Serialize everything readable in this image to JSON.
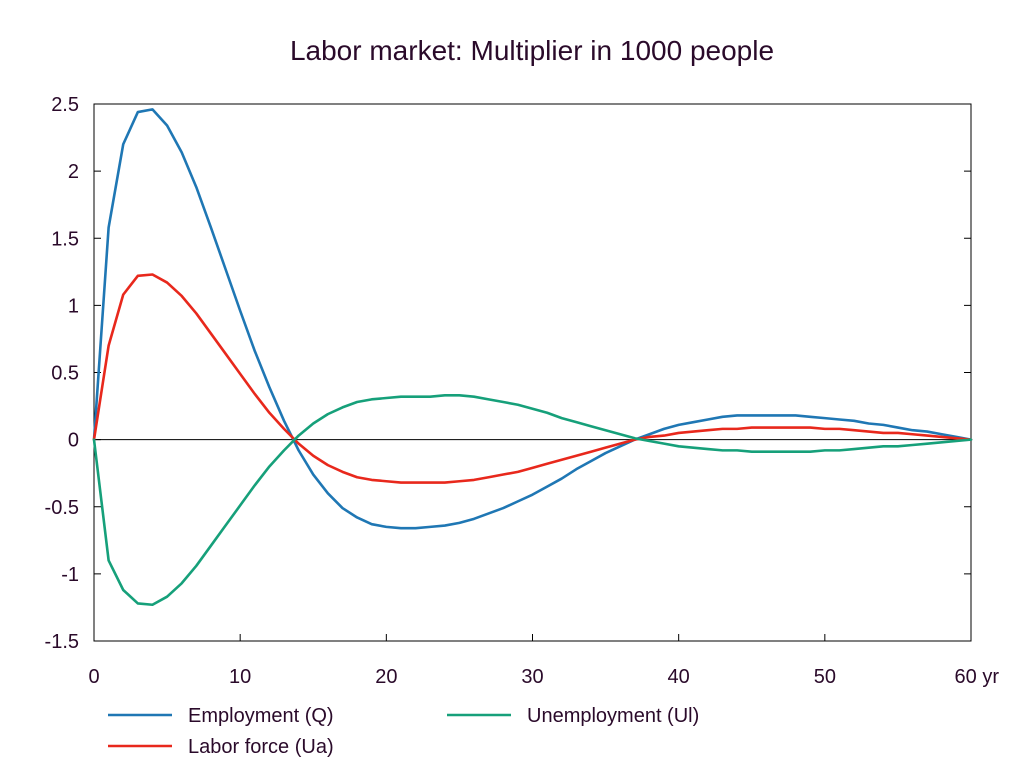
{
  "chart_data": {
    "type": "line",
    "title": "Labor market: Multiplier in 1000 people",
    "xlabel": "",
    "ylabel": "",
    "xlim": [
      0,
      60
    ],
    "ylim": [
      -1.5,
      2.5
    ],
    "x_ticks": [
      0,
      10,
      20,
      30,
      40,
      50,
      60
    ],
    "x_tick_labels": [
      "0",
      "10",
      "20",
      "30",
      "40",
      "50",
      "60 yr"
    ],
    "y_ticks": [
      2.5,
      2,
      1.5,
      1,
      0.5,
      0,
      -0.5,
      -1,
      -1.5
    ],
    "y_tick_labels": [
      "2.5",
      "2",
      "1.5",
      "1",
      "0.5",
      "0",
      "-0.5",
      "-1",
      "-1.5"
    ],
    "zero_line": true,
    "grid": false,
    "legend_position": "bottom",
    "x": [
      0,
      1,
      2,
      3,
      4,
      5,
      6,
      7,
      8,
      9,
      10,
      11,
      12,
      13,
      14,
      15,
      16,
      17,
      18,
      19,
      20,
      21,
      22,
      23,
      24,
      25,
      26,
      27,
      28,
      29,
      30,
      31,
      32,
      33,
      34,
      35,
      36,
      37,
      38,
      39,
      40,
      41,
      42,
      43,
      44,
      45,
      46,
      47,
      48,
      49,
      50,
      51,
      52,
      53,
      54,
      55,
      56,
      57,
      58,
      59,
      60
    ],
    "series": [
      {
        "name": "Employment (Q)",
        "color": "#1f77b4",
        "values": [
          0,
          1.58,
          2.2,
          2.44,
          2.46,
          2.34,
          2.14,
          1.88,
          1.58,
          1.27,
          0.96,
          0.66,
          0.39,
          0.14,
          -0.08,
          -0.26,
          -0.4,
          -0.51,
          -0.58,
          -0.63,
          -0.65,
          -0.66,
          -0.66,
          -0.65,
          -0.64,
          -0.62,
          -0.59,
          -0.55,
          -0.51,
          -0.46,
          -0.41,
          -0.35,
          -0.29,
          -0.22,
          -0.16,
          -0.1,
          -0.05,
          0.0,
          0.04,
          0.08,
          0.11,
          0.13,
          0.15,
          0.17,
          0.18,
          0.18,
          0.18,
          0.18,
          0.18,
          0.17,
          0.16,
          0.15,
          0.14,
          0.12,
          0.11,
          0.09,
          0.07,
          0.06,
          0.04,
          0.02,
          0.0
        ]
      },
      {
        "name": "Labor force (Ua)",
        "color": "#e8281c",
        "values": [
          0,
          0.7,
          1.08,
          1.22,
          1.23,
          1.17,
          1.07,
          0.94,
          0.79,
          0.64,
          0.49,
          0.34,
          0.2,
          0.08,
          -0.03,
          -0.12,
          -0.19,
          -0.24,
          -0.28,
          -0.3,
          -0.31,
          -0.32,
          -0.32,
          -0.32,
          -0.32,
          -0.31,
          -0.3,
          -0.28,
          -0.26,
          -0.24,
          -0.21,
          -0.18,
          -0.15,
          -0.12,
          -0.09,
          -0.06,
          -0.03,
          0.0,
          0.02,
          0.03,
          0.05,
          0.06,
          0.07,
          0.08,
          0.08,
          0.09,
          0.09,
          0.09,
          0.09,
          0.09,
          0.08,
          0.08,
          0.07,
          0.06,
          0.05,
          0.05,
          0.04,
          0.03,
          0.02,
          0.01,
          0.0
        ]
      },
      {
        "name": "Unemployment (Ul)",
        "color": "#16a07a",
        "values": [
          0,
          -0.9,
          -1.12,
          -1.22,
          -1.23,
          -1.17,
          -1.07,
          -0.94,
          -0.79,
          -0.64,
          -0.49,
          -0.34,
          -0.2,
          -0.08,
          0.03,
          0.12,
          0.19,
          0.24,
          0.28,
          0.3,
          0.31,
          0.32,
          0.32,
          0.32,
          0.33,
          0.33,
          0.32,
          0.3,
          0.28,
          0.26,
          0.23,
          0.2,
          0.16,
          0.13,
          0.1,
          0.07,
          0.04,
          0.01,
          -0.01,
          -0.03,
          -0.05,
          -0.06,
          -0.07,
          -0.08,
          -0.08,
          -0.09,
          -0.09,
          -0.09,
          -0.09,
          -0.09,
          -0.08,
          -0.08,
          -0.07,
          -0.06,
          -0.05,
          -0.05,
          -0.04,
          -0.03,
          -0.02,
          -0.01,
          0.0
        ]
      }
    ]
  }
}
